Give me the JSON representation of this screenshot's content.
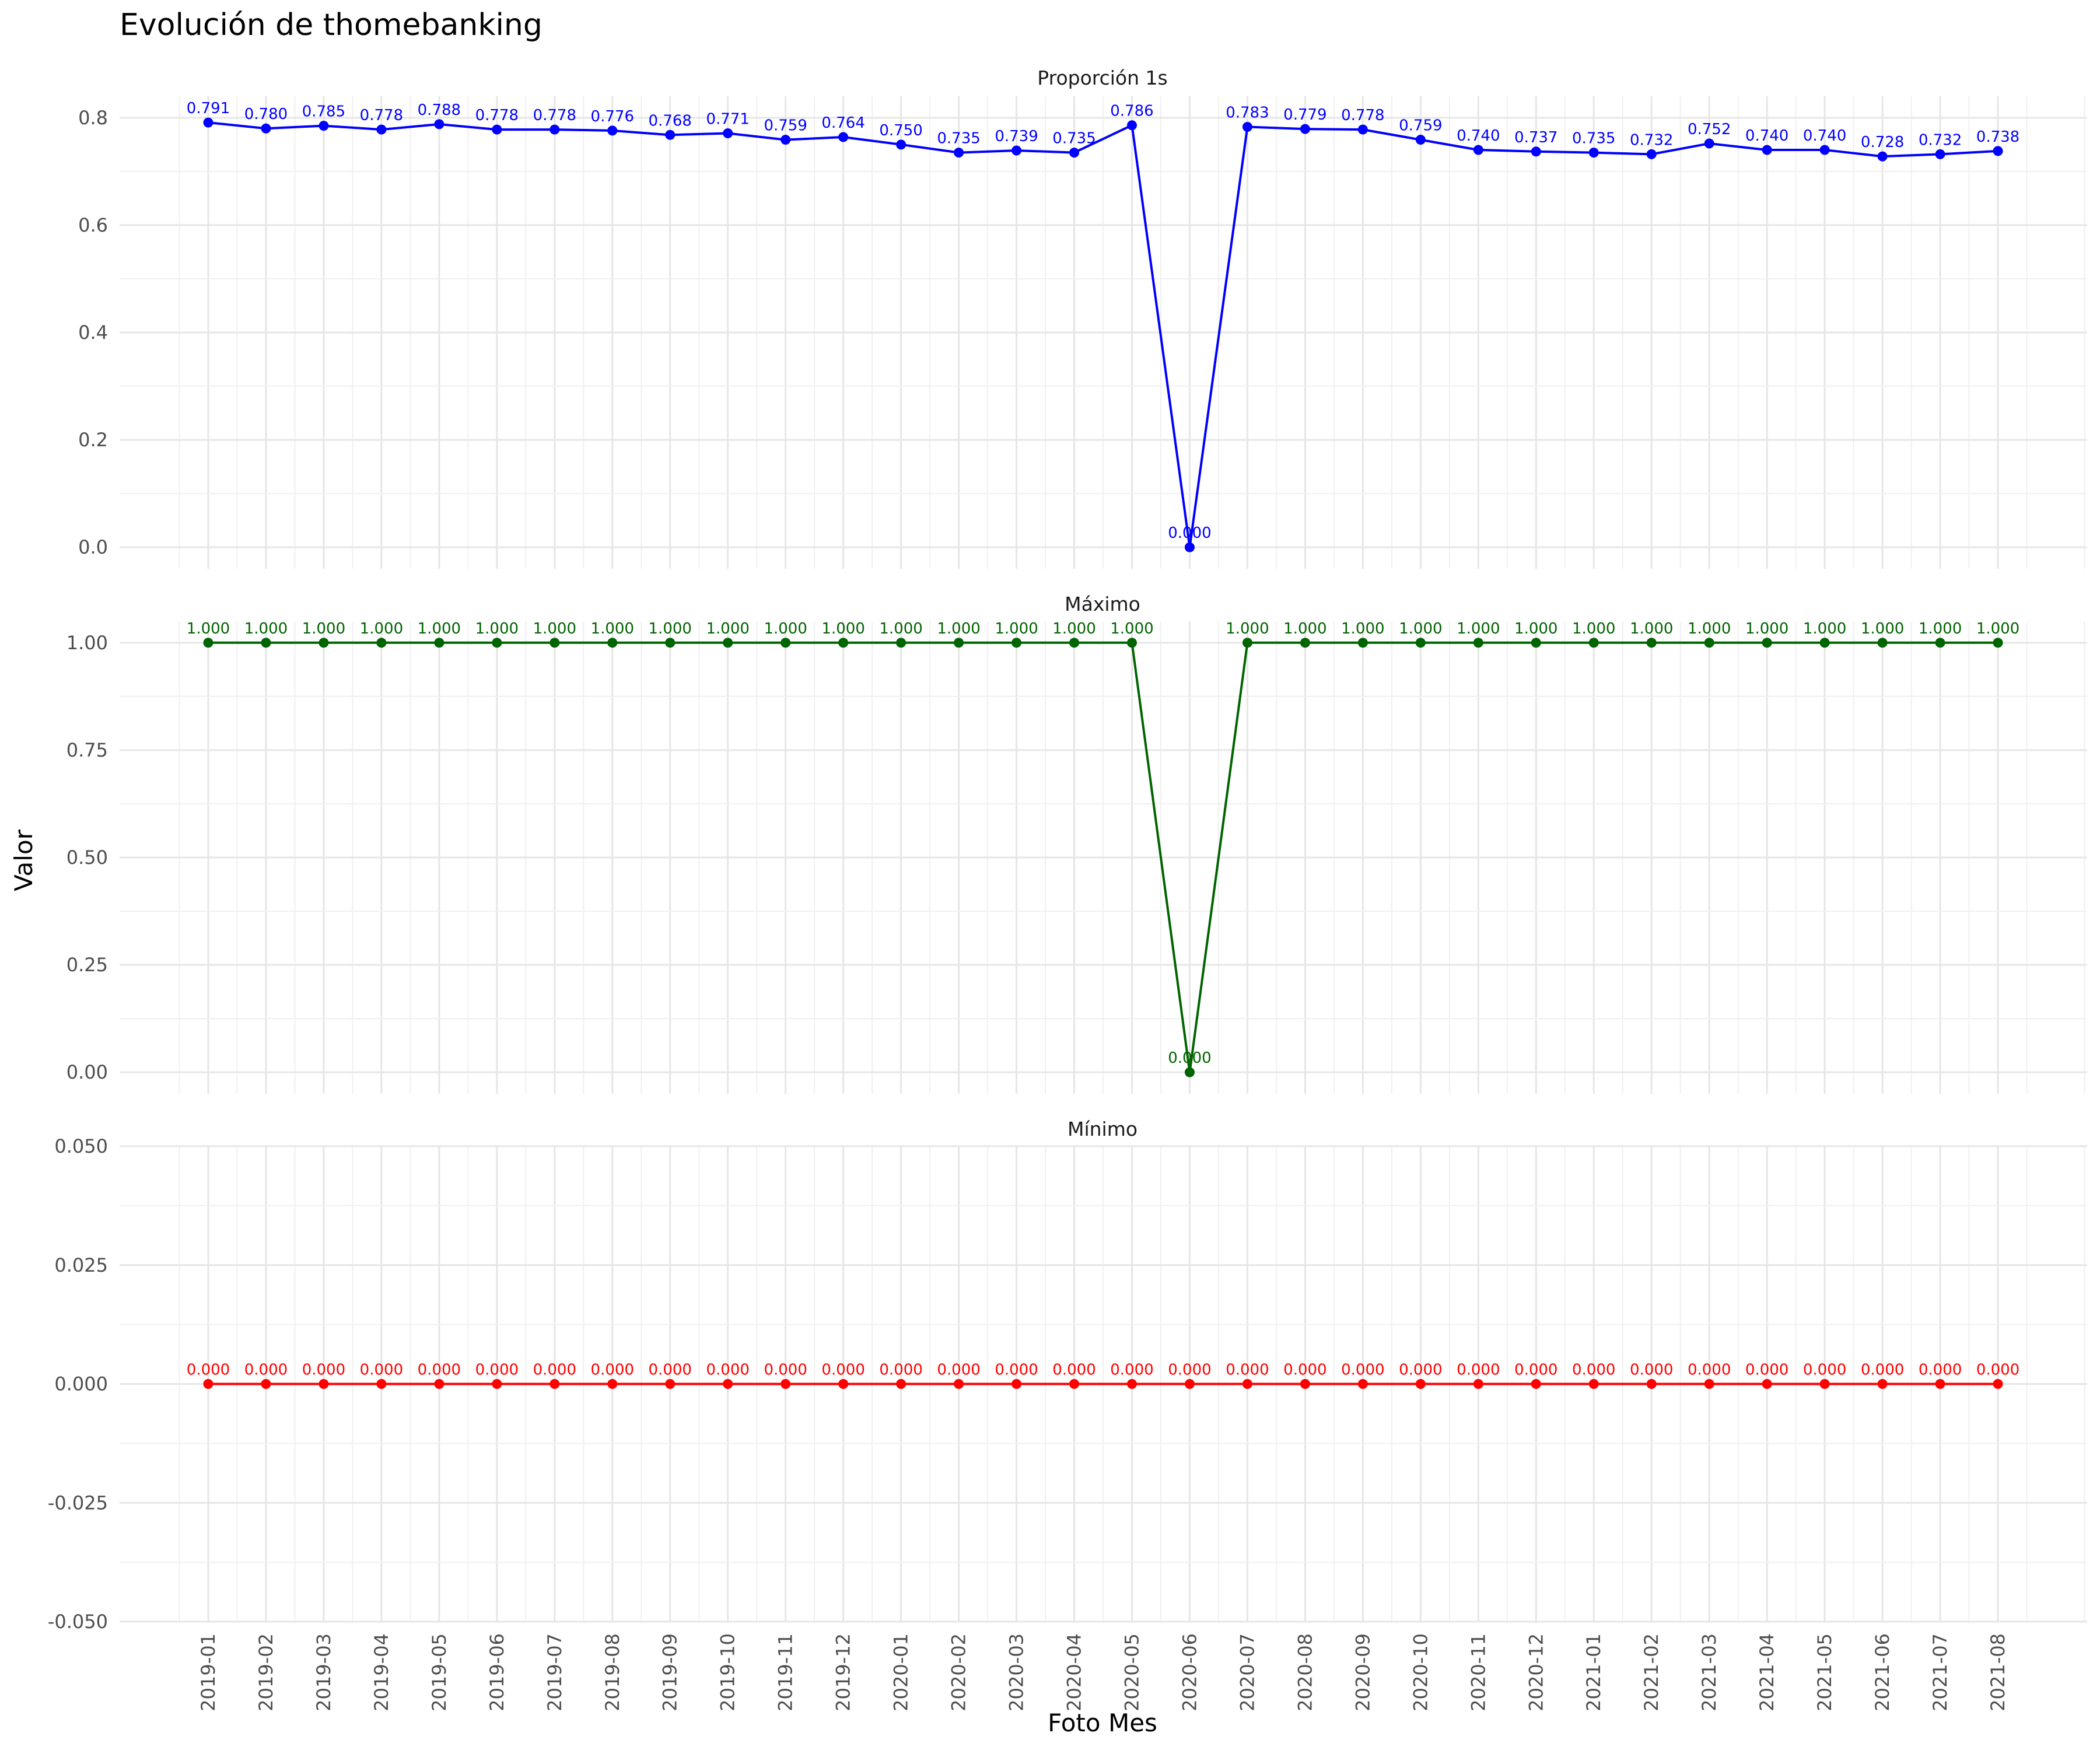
{
  "title": "Evolución de thomebanking",
  "xlabel": "Foto Mes",
  "ylabel": "Valor",
  "chart_data": {
    "type": "line",
    "title": "Evolución de thomebanking",
    "xlabel": "Foto Mes",
    "ylabel": "Valor",
    "grid": true,
    "x": [
      "2019-01",
      "2019-02",
      "2019-03",
      "2019-04",
      "2019-05",
      "2019-06",
      "2019-07",
      "2019-08",
      "2019-09",
      "2019-10",
      "2019-11",
      "2019-12",
      "2020-01",
      "2020-02",
      "2020-03",
      "2020-04",
      "2020-05",
      "2020-06",
      "2020-07",
      "2020-08",
      "2020-09",
      "2020-10",
      "2020-11",
      "2020-12",
      "2021-01",
      "2021-02",
      "2021-03",
      "2021-04",
      "2021-05",
      "2021-06",
      "2021-07",
      "2021-08"
    ],
    "panels": [
      {
        "strip": "Proporción 1s",
        "color": "#0000ff",
        "ylim": [
          -0.04,
          0.84
        ],
        "yticks": [
          "0.0",
          "0.2",
          "0.4",
          "0.6",
          "0.8"
        ],
        "values": [
          0.791,
          0.78,
          0.785,
          0.778,
          0.788,
          0.778,
          0.778,
          0.776,
          0.768,
          0.771,
          0.759,
          0.764,
          0.75,
          0.735,
          0.739,
          0.735,
          0.786,
          0.0,
          0.783,
          0.779,
          0.778,
          0.759,
          0.74,
          0.737,
          0.735,
          0.732,
          0.752,
          0.74,
          0.74,
          0.728,
          0.732,
          0.738
        ],
        "labels": [
          "0.791",
          "0.780",
          "0.785",
          "0.778",
          "0.788",
          "0.778",
          "0.778",
          "0.776",
          "0.768",
          "0.771",
          "0.759",
          "0.764",
          "0.750",
          "0.735",
          "0.739",
          "0.735",
          "0.786",
          "0.000",
          "0.783",
          "0.779",
          "0.778",
          "0.759",
          "0.740",
          "0.737",
          "0.735",
          "0.732",
          "0.752",
          "0.740",
          "0.740",
          "0.728",
          "0.732",
          "0.738"
        ]
      },
      {
        "strip": "Máximo",
        "color": "#006400",
        "ylim": [
          -0.05,
          1.05
        ],
        "yticks": [
          "0.00",
          "0.25",
          "0.50",
          "0.75",
          "1.00"
        ],
        "values": [
          1,
          1,
          1,
          1,
          1,
          1,
          1,
          1,
          1,
          1,
          1,
          1,
          1,
          1,
          1,
          1,
          1,
          0,
          1,
          1,
          1,
          1,
          1,
          1,
          1,
          1,
          1,
          1,
          1,
          1,
          1,
          1
        ],
        "labels": [
          "1.000",
          "1.000",
          "1.000",
          "1.000",
          "1.000",
          "1.000",
          "1.000",
          "1.000",
          "1.000",
          "1.000",
          "1.000",
          "1.000",
          "1.000",
          "1.000",
          "1.000",
          "1.000",
          "1.000",
          "0.000",
          "1.000",
          "1.000",
          "1.000",
          "1.000",
          "1.000",
          "1.000",
          "1.000",
          "1.000",
          "1.000",
          "1.000",
          "1.000",
          "1.000",
          "1.000",
          "1.000"
        ]
      },
      {
        "strip": "Mínimo",
        "color": "#ff0000",
        "ylim": [
          -0.05,
          0.05
        ],
        "yticks": [
          "-0.050",
          "-0.025",
          "0.000",
          "0.025",
          "0.050"
        ],
        "values": [
          0,
          0,
          0,
          0,
          0,
          0,
          0,
          0,
          0,
          0,
          0,
          0,
          0,
          0,
          0,
          0,
          0,
          0,
          0,
          0,
          0,
          0,
          0,
          0,
          0,
          0,
          0,
          0,
          0,
          0,
          0,
          0
        ],
        "labels": [
          "0.000",
          "0.000",
          "0.000",
          "0.000",
          "0.000",
          "0.000",
          "0.000",
          "0.000",
          "0.000",
          "0.000",
          "0.000",
          "0.000",
          "0.000",
          "0.000",
          "0.000",
          "0.000",
          "0.000",
          "0.000",
          "0.000",
          "0.000",
          "0.000",
          "0.000",
          "0.000",
          "0.000",
          "0.000",
          "0.000",
          "0.000",
          "0.000",
          "0.000",
          "0.000",
          "0.000",
          "0.000"
        ]
      }
    ]
  }
}
